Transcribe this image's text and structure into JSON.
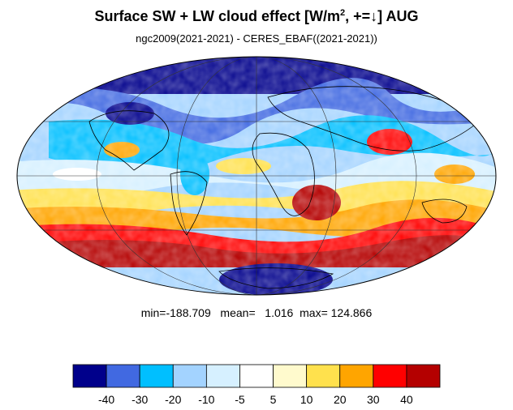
{
  "title": {
    "main": "Surface SW + LW cloud effect [W/m",
    "sup": "2",
    "tail": ", +=↓]  AUG"
  },
  "subtitle": "ngc2009(2021-2021) - CERES_EBAF((2021-2021))",
  "stats": {
    "min_label": "min=",
    "min": "-188.709",
    "mean_label": "mean=",
    "mean": "1.016",
    "max_label": "max=",
    "max": "124.866"
  },
  "colorbar": {
    "colors": [
      "#00008b",
      "#4169e1",
      "#00bfff",
      "#a3d3ff",
      "#d6f0ff",
      "#ffffff",
      "#fffacd",
      "#ffe14d",
      "#ffa500",
      "#ff0000",
      "#b40000"
    ],
    "tick_labels": [
      "-40",
      "-30",
      "-20",
      "-10",
      "-5",
      "5",
      "10",
      "20",
      "30",
      "40"
    ]
  },
  "map": {
    "projection": "Mollweide",
    "ocean_background": "#ffffff"
  }
}
